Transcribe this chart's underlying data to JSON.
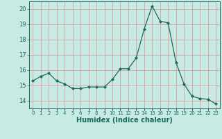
{
  "title": "",
  "xlabel": "Humidex (Indice chaleur)",
  "ylabel": "",
  "x": [
    0,
    1,
    2,
    3,
    4,
    5,
    6,
    7,
    8,
    9,
    10,
    11,
    12,
    13,
    14,
    15,
    16,
    17,
    18,
    19,
    20,
    21,
    22,
    23
  ],
  "y": [
    15.3,
    15.6,
    15.8,
    15.3,
    15.1,
    14.8,
    14.8,
    14.9,
    14.9,
    14.9,
    15.4,
    16.1,
    16.1,
    16.8,
    18.7,
    20.2,
    19.2,
    19.1,
    16.5,
    15.1,
    14.3,
    14.15,
    14.1,
    13.8
  ],
  "line_color": "#1a6b5a",
  "marker": "D",
  "marker_size": 2.0,
  "bg_color": "#c8eae4",
  "grid_color": "#e09090",
  "tick_color": "#1a6b5a",
  "label_color": "#1a6b5a",
  "ylim": [
    13.5,
    20.5
  ],
  "yticks": [
    14,
    15,
    16,
    17,
    18,
    19,
    20
  ],
  "xlim": [
    -0.5,
    23.5
  ],
  "xlabel_fontsize": 7,
  "ytick_fontsize": 6,
  "xtick_fontsize": 5
}
